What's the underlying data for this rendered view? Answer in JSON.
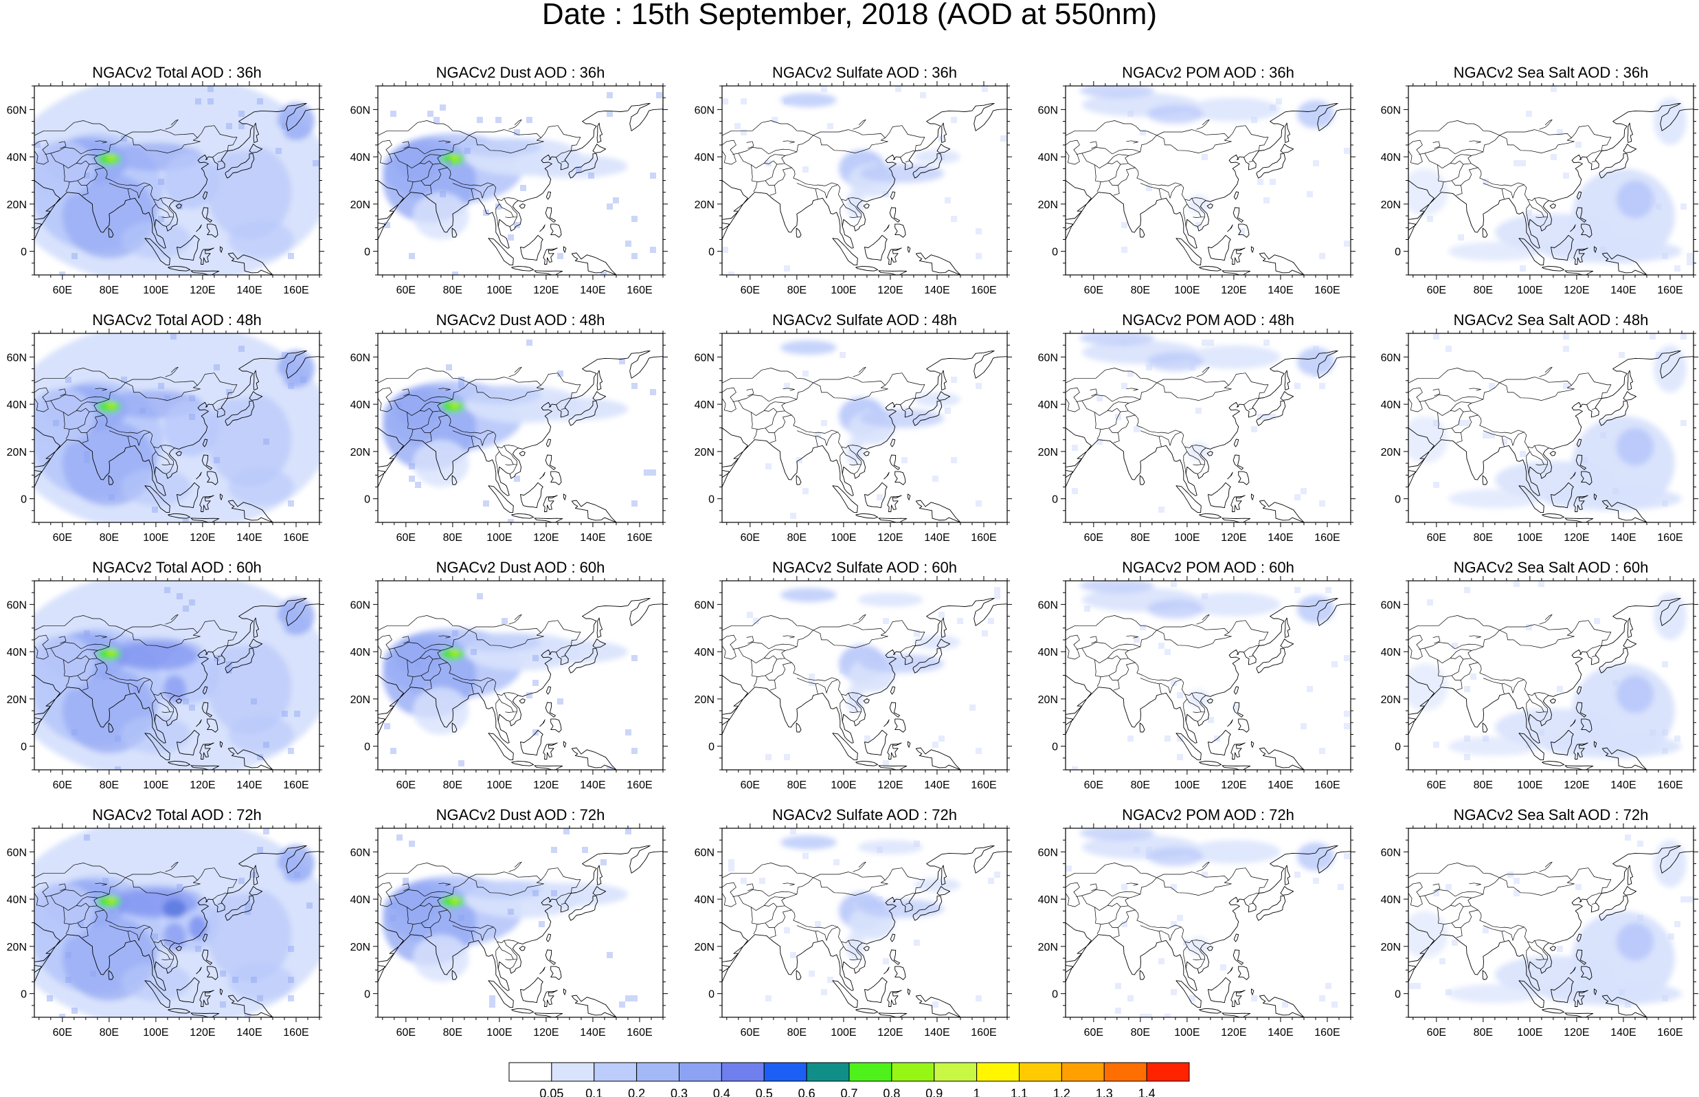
{
  "title": "Date : 15th September, 2018 (AOD at 550nm)",
  "map": {
    "lon_range": [
      48,
      170
    ],
    "lat_range": [
      -10,
      70
    ],
    "lon_ticks": [
      "60E",
      "80E",
      "100E",
      "120E",
      "140E",
      "160E"
    ],
    "lat_ticks": [
      "60N",
      "40N",
      "20N",
      "0"
    ],
    "lon_tick_values": [
      60,
      80,
      100,
      120,
      140,
      160
    ],
    "lat_tick_values": [
      60,
      40,
      20,
      0
    ]
  },
  "rows": [
    {
      "hour": "36h",
      "titles": [
        "NGACv2 Total AOD : 36h",
        "NGACv2 Dust AOD : 36h",
        "NGACv2 Sulfate AOD : 36h",
        "NGACv2 POM AOD : 36h",
        "NGACv2 Sea Salt AOD : 36h"
      ]
    },
    {
      "hour": "48h",
      "titles": [
        "NGACv2 Total AOD : 48h",
        "NGACv2 Dust AOD : 48h",
        "NGACv2 Sulfate AOD : 48h",
        "NGACv2 POM AOD : 48h",
        "NGACv2 Sea Salt AOD : 48h"
      ]
    },
    {
      "hour": "60h",
      "titles": [
        "NGACv2 Total AOD : 60h",
        "NGACv2 Dust AOD : 60h",
        "NGACv2 Sulfate AOD : 60h",
        "NGACv2 POM AOD : 60h",
        "NGACv2 Sea Salt AOD : 60h"
      ]
    },
    {
      "hour": "72h",
      "titles": [
        "NGACv2 Total AOD : 72h",
        "NGACv2 Dust AOD : 72h",
        "NGACv2 Sulfate AOD : 72h",
        "NGACv2 POM AOD : 72h",
        "NGACv2 Sea Salt  AOD : 72h"
      ]
    }
  ],
  "colorbar": {
    "labels": [
      "0.05",
      "0.1",
      "0.2",
      "0.3",
      "0.4",
      "0.5",
      "0.6",
      "0.7",
      "0.8",
      "0.9",
      "1",
      "1.1",
      "1.2",
      "1.3",
      "1.4"
    ],
    "colors": [
      "#ffffff",
      "#d9e3fc",
      "#bccdfb",
      "#a3b9f7",
      "#8ca3f3",
      "#6f7fed",
      "#1c5ff4",
      "#0f8f88",
      "#4ef21a",
      "#97f515",
      "#c8f844",
      "#fff600",
      "#ffcb00",
      "#ffa000",
      "#ff6e00",
      "#ff2300"
    ]
  },
  "colors": {
    "light_blue": "#d8e2fc",
    "medium_blue": "#b3c4fa",
    "blue": "#95aaf4",
    "deep_blue": "#7385ee",
    "green": "#49e61e",
    "yellow_green": "#b4f000",
    "coastline": "#000000"
  },
  "fields": {
    "total": "Total AOD",
    "dust": "Dust AOD",
    "sulfate": "Sulfate AOD",
    "pom": "POM AOD",
    "seasalt": "Sea Salt AOD"
  }
}
